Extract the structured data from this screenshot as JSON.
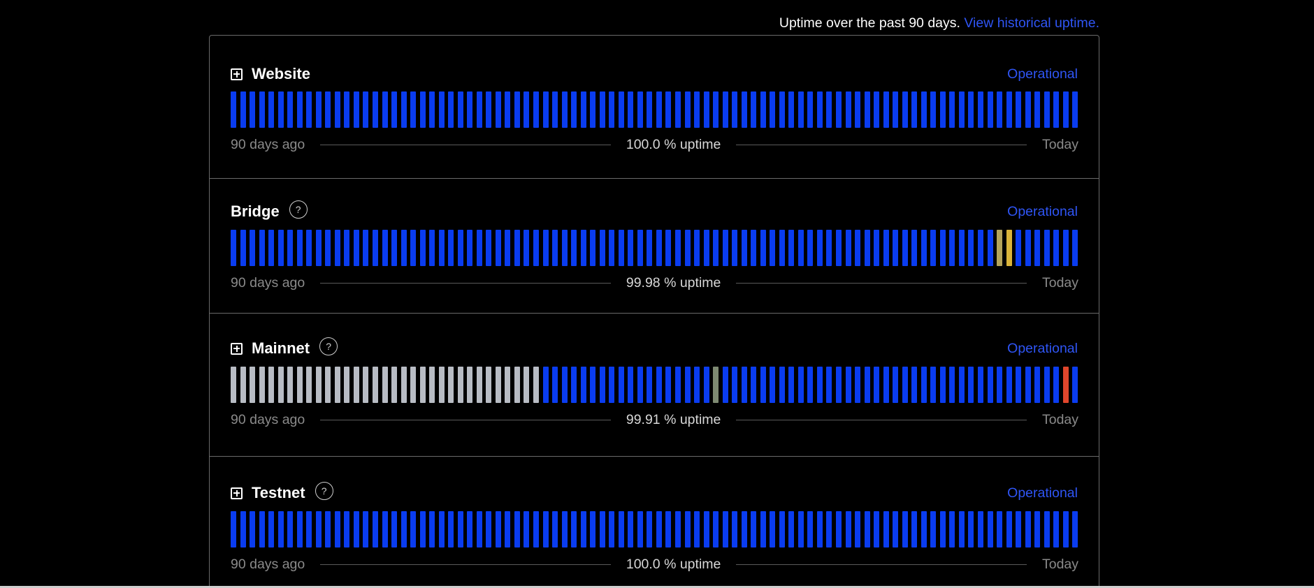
{
  "header": {
    "text": "Uptime over the past 90 days.",
    "link": "View historical uptime."
  },
  "colors": {
    "operational": "#0a3cf0",
    "no_data": "#b8bcc4",
    "minor": "#b3a35a",
    "minor_bright": "#d9b43a",
    "partial": "#7e8a72",
    "major": "#e0462c",
    "accent": "#2f55f5"
  },
  "components": [
    {
      "name": "Website",
      "expandable": true,
      "help": false,
      "status": "Operational",
      "uptime": "100.0 % uptime",
      "start_label": "90 days ago",
      "end_label": "Today",
      "segments": [
        {
          "state": "operational",
          "count": 90
        }
      ]
    },
    {
      "name": "Bridge",
      "expandable": false,
      "help": true,
      "help_symbol": "?",
      "status": "Operational",
      "uptime": "99.98 % uptime",
      "start_label": "90 days ago",
      "end_label": "Today",
      "segments": [
        {
          "state": "operational",
          "count": 81
        },
        {
          "state": "minor",
          "count": 1
        },
        {
          "state": "minor_bright",
          "count": 1
        },
        {
          "state": "operational",
          "count": 7
        }
      ]
    },
    {
      "name": "Mainnet",
      "expandable": true,
      "help": true,
      "help_symbol": "?",
      "status": "Operational",
      "uptime": "99.91 % uptime",
      "start_label": "90 days ago",
      "end_label": "Today",
      "segments": [
        {
          "state": "no_data",
          "count": 33
        },
        {
          "state": "operational",
          "count": 18
        },
        {
          "state": "partial",
          "count": 1
        },
        {
          "state": "operational",
          "count": 36
        },
        {
          "state": "major",
          "count": 1
        },
        {
          "state": "operational",
          "count": 1
        }
      ]
    },
    {
      "name": "Testnet",
      "expandable": true,
      "help": true,
      "help_symbol": "?",
      "status": "Operational",
      "uptime": "100.0 % uptime",
      "start_label": "90 days ago",
      "end_label": "Today",
      "segments": [
        {
          "state": "operational",
          "count": 90
        }
      ]
    }
  ]
}
